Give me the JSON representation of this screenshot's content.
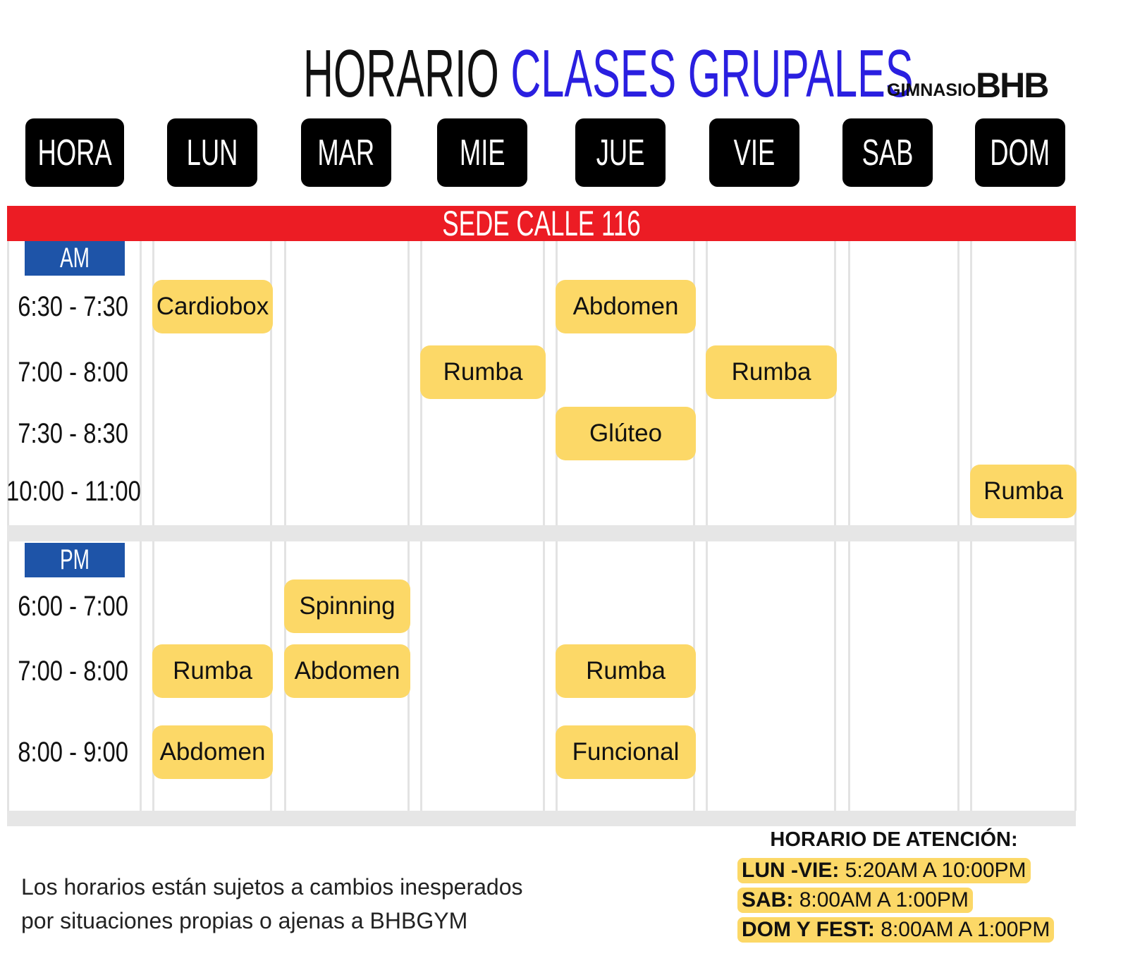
{
  "header": {
    "title_a": "HORARIO",
    "title_b": "CLASES GRUPALES",
    "brand_small": "GIMNASIO",
    "brand_big": "BHB"
  },
  "days": [
    "HORA",
    "LUN",
    "MAR",
    "MIE",
    "JUE",
    "VIE",
    "SAB",
    "DOM"
  ],
  "sede": "SEDE CALLE 116",
  "sections": [
    {
      "label": "AM",
      "rows": [
        {
          "time": "6:30 - 7:30",
          "cells": [
            "Cardiobox",
            null,
            null,
            "Abdomen",
            null,
            null,
            null
          ]
        },
        {
          "time": "7:00 - 8:00",
          "cells": [
            null,
            null,
            "Rumba",
            null,
            "Rumba",
            null,
            null
          ]
        },
        {
          "time": "7:30 - 8:30",
          "cells": [
            null,
            null,
            null,
            "Glúteo",
            null,
            null,
            null
          ]
        },
        {
          "time": "10:00 - 11:00",
          "cells": [
            null,
            null,
            null,
            null,
            null,
            null,
            "Rumba"
          ]
        }
      ]
    },
    {
      "label": "PM",
      "rows": [
        {
          "time": "6:00 - 7:00",
          "cells": [
            null,
            "Spinning",
            null,
            null,
            null,
            null,
            null
          ]
        },
        {
          "time": "7:00 - 8:00",
          "cells": [
            "Rumba",
            "Abdomen",
            null,
            "Rumba",
            null,
            null,
            null
          ]
        },
        {
          "time": "8:00 - 9:00",
          "cells": [
            "Abdomen",
            null,
            null,
            "Funcional",
            null,
            null,
            null
          ]
        }
      ]
    }
  ],
  "footer": {
    "notice": [
      "Los horarios están sujetos a cambios inesperados",
      "por situaciones propias o ajenas a BHBGYM"
    ],
    "hours_title": "HORARIO DE ATENCIÓN:",
    "hours": [
      {
        "label": "LUN -VIE:",
        "value": "5:20AM A 10:00PM"
      },
      {
        "label": "SAB:",
        "value": "8:00AM A 1:00PM"
      },
      {
        "label": "DOM Y FEST:",
        "value": "8:00AM A 1:00PM"
      }
    ]
  }
}
